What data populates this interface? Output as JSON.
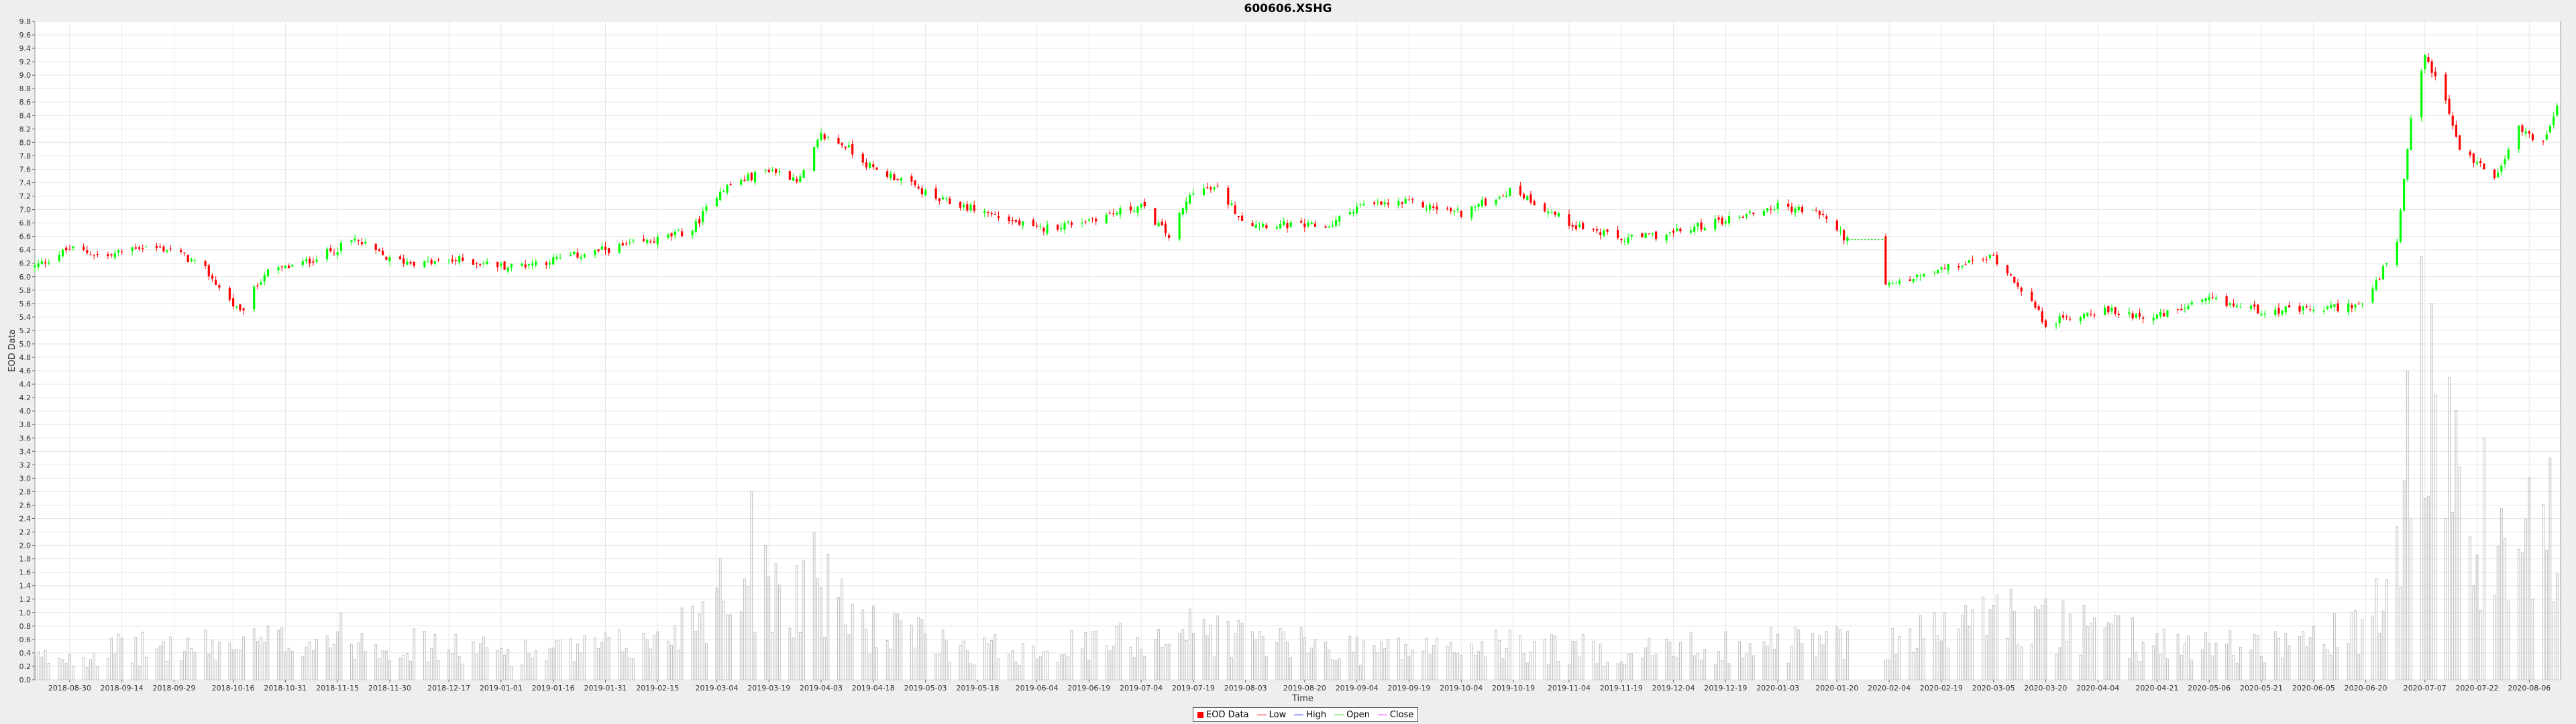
{
  "chart_data": {
    "type": "candlestick",
    "title": "600606.XSHG",
    "xlabel": "Time",
    "ylabel": "EOD Data",
    "ylim": [
      0,
      9.8
    ],
    "xlim": [
      "2018-08-20",
      "2020-08-15"
    ],
    "grid": true,
    "y_ticks": [
      0.0,
      0.2,
      0.4,
      0.6,
      0.8,
      1.0,
      1.2,
      1.4,
      1.6,
      1.8,
      2.0,
      2.2,
      2.4,
      2.6,
      2.8,
      3.0,
      3.2,
      3.4,
      3.6,
      3.8,
      4.0,
      4.2,
      4.4,
      4.6,
      4.8,
      5.0,
      5.2,
      5.4,
      5.6,
      5.8,
      6.0,
      6.2,
      6.4,
      6.6,
      6.8,
      7.0,
      7.2,
      7.4,
      7.6,
      7.8,
      8.0,
      8.2,
      8.4,
      8.6,
      8.8,
      9.0,
      9.2,
      9.4,
      9.6,
      9.8
    ],
    "x_ticks": [
      "2018-08-30",
      "2018-09-14",
      "2018-09-29",
      "2018-10-16",
      "2018-10-31",
      "2018-11-15",
      "2018-11-30",
      "2018-12-17",
      "2019-01-01",
      "2019-01-16",
      "2019-01-31",
      "2019-02-15",
      "2019-03-04",
      "2019-03-19",
      "2019-04-03",
      "2019-04-18",
      "2019-05-03",
      "2019-05-18",
      "2019-06-04",
      "2019-06-19",
      "2019-07-04",
      "2019-07-19",
      "2019-08-03",
      "2019-08-20",
      "2019-09-04",
      "2019-09-19",
      "2019-10-04",
      "2019-10-19",
      "2019-11-04",
      "2019-11-19",
      "2019-12-04",
      "2019-12-19",
      "2020-01-03",
      "2020-01-20",
      "2020-02-04",
      "2020-02-19",
      "2020-03-05",
      "2020-03-20",
      "2020-04-04",
      "2020-04-21",
      "2020-05-06",
      "2020-05-21",
      "2020-06-05",
      "2020-06-20",
      "2020-07-07",
      "2020-07-22",
      "2020-08-06"
    ],
    "close_anchors": [
      [
        "2018-08-20",
        6.15
      ],
      [
        "2018-08-30",
        6.42
      ],
      [
        "2018-09-10",
        6.3
      ],
      [
        "2018-09-18",
        6.45
      ],
      [
        "2018-09-29",
        6.4
      ],
      [
        "2018-10-08",
        6.1
      ],
      [
        "2018-10-18",
        5.45
      ],
      [
        "2018-10-25",
        6.05
      ],
      [
        "2018-11-05",
        6.2
      ],
      [
        "2018-11-14",
        6.4
      ],
      [
        "2018-11-20",
        6.55
      ],
      [
        "2018-11-30",
        6.25
      ],
      [
        "2018-12-10",
        6.2
      ],
      [
        "2018-12-20",
        6.25
      ],
      [
        "2019-01-03",
        6.15
      ],
      [
        "2019-01-16",
        6.25
      ],
      [
        "2019-01-31",
        6.4
      ],
      [
        "2019-02-15",
        6.55
      ],
      [
        "2019-02-25",
        6.7
      ],
      [
        "2019-03-05",
        7.3
      ],
      [
        "2019-03-19",
        7.6
      ],
      [
        "2019-03-28",
        7.45
      ],
      [
        "2019-04-03",
        8.1
      ],
      [
        "2019-04-10",
        7.95
      ],
      [
        "2019-04-18",
        7.6
      ],
      [
        "2019-04-26",
        7.45
      ],
      [
        "2019-05-06",
        7.15
      ],
      [
        "2019-05-18",
        7.0
      ],
      [
        "2019-06-04",
        6.7
      ],
      [
        "2019-06-19",
        6.85
      ],
      [
        "2019-07-04",
        7.05
      ],
      [
        "2019-07-12",
        6.6
      ],
      [
        "2019-07-19",
        7.3
      ],
      [
        "2019-07-26",
        7.3
      ],
      [
        "2019-08-03",
        6.8
      ],
      [
        "2019-08-20",
        6.75
      ],
      [
        "2019-08-27",
        6.75
      ],
      [
        "2019-09-04",
        7.05
      ],
      [
        "2019-09-19",
        7.1
      ],
      [
        "2019-10-04",
        6.95
      ],
      [
        "2019-10-19",
        7.3
      ],
      [
        "2019-11-04",
        6.8
      ],
      [
        "2019-11-19",
        6.55
      ],
      [
        "2019-12-04",
        6.65
      ],
      [
        "2019-12-19",
        6.85
      ],
      [
        "2020-01-03",
        7.05
      ],
      [
        "2020-01-15",
        6.95
      ],
      [
        "2020-01-23",
        6.55
      ],
      [
        "2020-02-03",
        5.85
      ],
      [
        "2020-02-19",
        6.1
      ],
      [
        "2020-03-05",
        6.3
      ],
      [
        "2020-03-12",
        5.9
      ],
      [
        "2020-03-20",
        5.3
      ],
      [
        "2020-04-04",
        5.5
      ],
      [
        "2020-04-21",
        5.4
      ],
      [
        "2020-05-06",
        5.65
      ],
      [
        "2020-05-21",
        5.5
      ],
      [
        "2020-06-05",
        5.5
      ],
      [
        "2020-06-20",
        5.6
      ],
      [
        "2020-06-29",
        6.5
      ],
      [
        "2020-07-03",
        8.3
      ],
      [
        "2020-07-07",
        9.3
      ],
      [
        "2020-07-13",
        8.6
      ],
      [
        "2020-07-17",
        7.9
      ],
      [
        "2020-07-27",
        7.5
      ],
      [
        "2020-08-03",
        8.2
      ],
      [
        "2020-08-10",
        8.0
      ],
      [
        "2020-08-14",
        8.5
      ]
    ],
    "volume_anchors": [
      [
        "2018-08-20",
        0.3
      ],
      [
        "2018-09-15",
        0.45
      ],
      [
        "2018-10-16",
        0.5
      ],
      [
        "2018-11-15",
        0.65
      ],
      [
        "2018-12-17",
        0.45
      ],
      [
        "2019-01-16",
        0.4
      ],
      [
        "2019-02-15",
        0.55
      ],
      [
        "2019-03-04",
        1.3
      ],
      [
        "2019-03-19",
        1.4
      ],
      [
        "2019-04-03",
        1.3
      ],
      [
        "2019-04-18",
        0.75
      ],
      [
        "2019-05-18",
        0.45
      ],
      [
        "2019-06-19",
        0.5
      ],
      [
        "2019-07-19",
        0.75
      ],
      [
        "2019-08-20",
        0.5
      ],
      [
        "2019-09-19",
        0.45
      ],
      [
        "2019-10-19",
        0.5
      ],
      [
        "2019-11-19",
        0.4
      ],
      [
        "2019-12-19",
        0.5
      ],
      [
        "2020-01-20",
        0.55
      ],
      [
        "2020-02-19",
        0.7
      ],
      [
        "2020-03-05",
        1.0
      ],
      [
        "2020-03-20",
        0.8
      ],
      [
        "2020-04-21",
        0.55
      ],
      [
        "2020-05-21",
        0.5
      ],
      [
        "2020-06-20",
        0.7
      ],
      [
        "2020-06-29",
        1.6
      ],
      [
        "2020-07-07",
        3.8
      ],
      [
        "2020-07-17",
        2.5
      ],
      [
        "2020-07-27",
        1.7
      ],
      [
        "2020-08-14",
        2.4
      ]
    ],
    "volume_spikes": [
      [
        "2019-03-14",
        2.8
      ],
      [
        "2019-04-01",
        2.2
      ],
      [
        "2020-07-02",
        4.6
      ],
      [
        "2020-07-06",
        6.3
      ],
      [
        "2020-07-09",
        5.6
      ],
      [
        "2020-07-14",
        4.5
      ],
      [
        "2020-07-24",
        3.6
      ],
      [
        "2020-08-12",
        3.3
      ]
    ],
    "gaps": [
      [
        "2020-01-24",
        "2020-02-02"
      ]
    ],
    "colors": {
      "up": "#00ff00",
      "down": "#ff0000",
      "volume": "#c0c0c0",
      "plot_bg": "#ffffff",
      "grid": "#e6e6e6",
      "flat_line": "#00cc00"
    },
    "series": [
      {
        "name": "EOD Data",
        "color": "#ff0000"
      },
      {
        "name": "Low",
        "color": "#ff0000"
      },
      {
        "name": "High",
        "color": "#0000ff"
      },
      {
        "name": "Open",
        "color": "#00cc00"
      },
      {
        "name": "Close",
        "color": "#ff00ff"
      }
    ]
  }
}
